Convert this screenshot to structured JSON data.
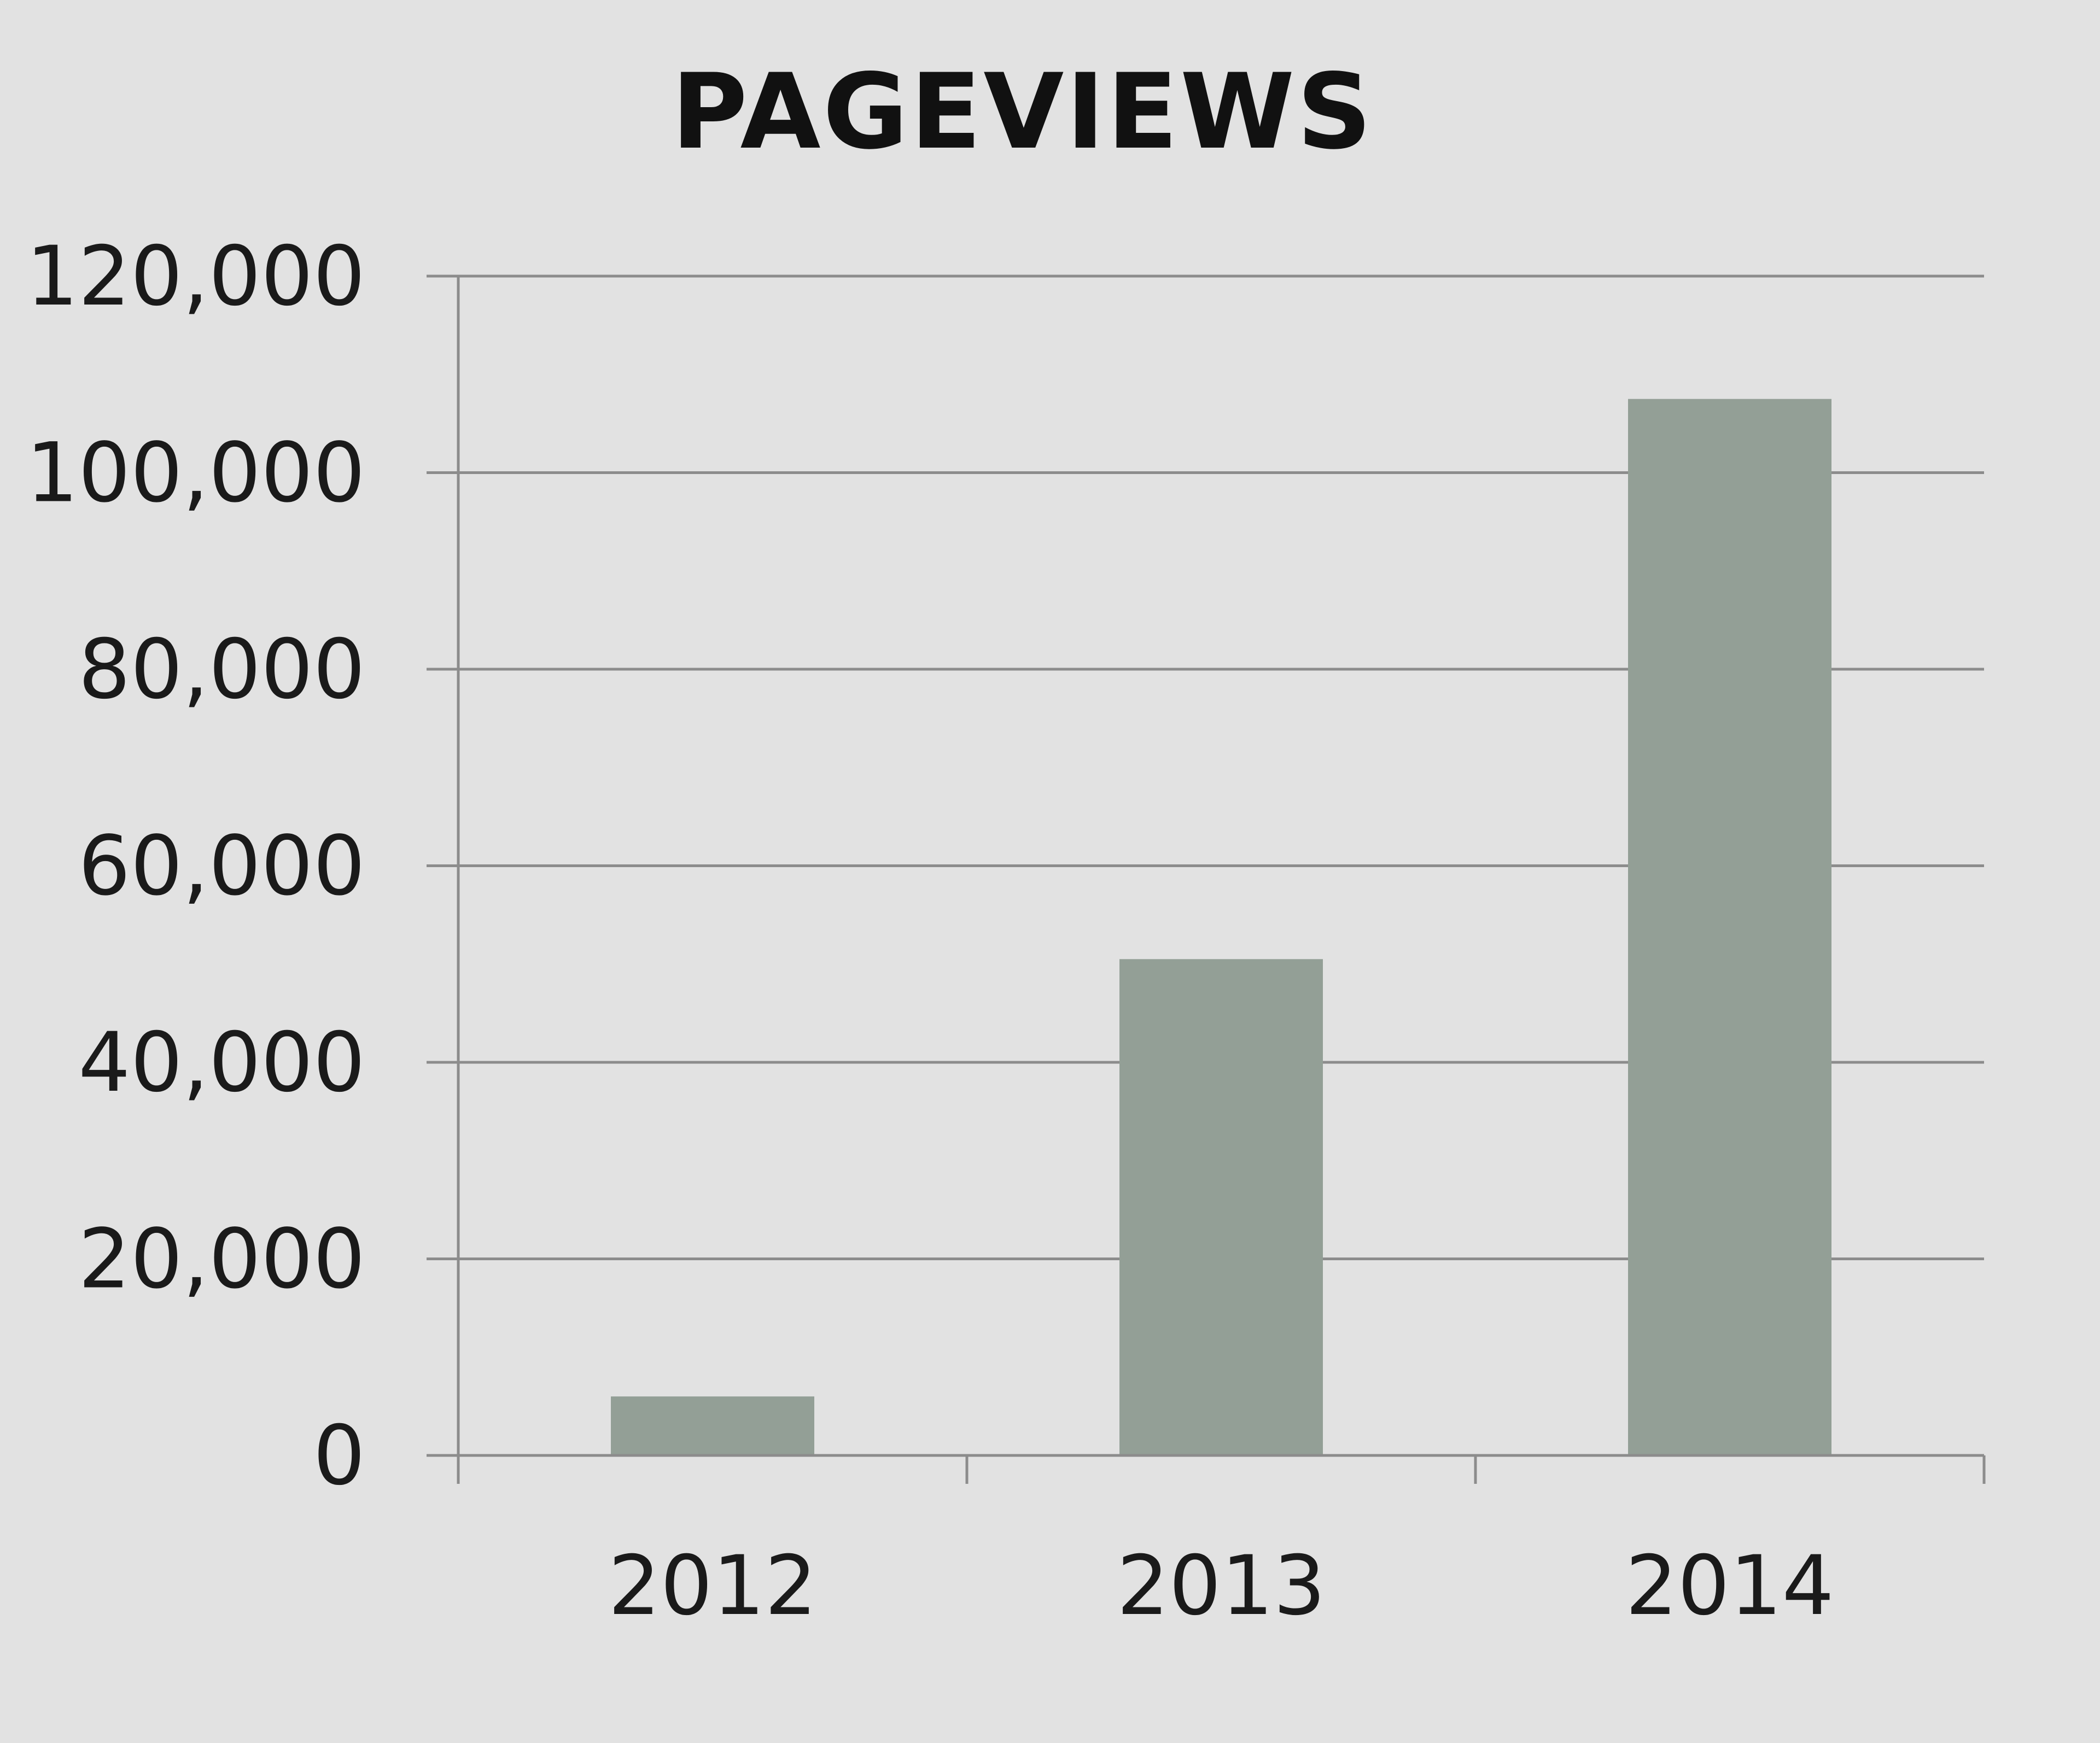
{
  "chart_data": {
    "type": "bar",
    "title": "PAGEVIEWS",
    "categories": [
      "2012",
      "2013",
      "2014"
    ],
    "values": [
      6000,
      50500,
      107500
    ],
    "ylim": [
      0,
      120000
    ],
    "yticks": [
      0,
      20000,
      40000,
      60000,
      80000,
      100000,
      120000
    ],
    "ytick_labels": [
      "0",
      "20,000",
      "40,000",
      "60,000",
      "80,000",
      "100,000",
      "120,000"
    ],
    "xlabel": "",
    "ylabel": "",
    "grid": true,
    "legend": "none",
    "colors": {
      "bar": "#939f96",
      "grid": "#8c8c8c",
      "axis": "#8c8c8c",
      "background": "#e2e2e2",
      "text": "#1a1a1a"
    }
  }
}
